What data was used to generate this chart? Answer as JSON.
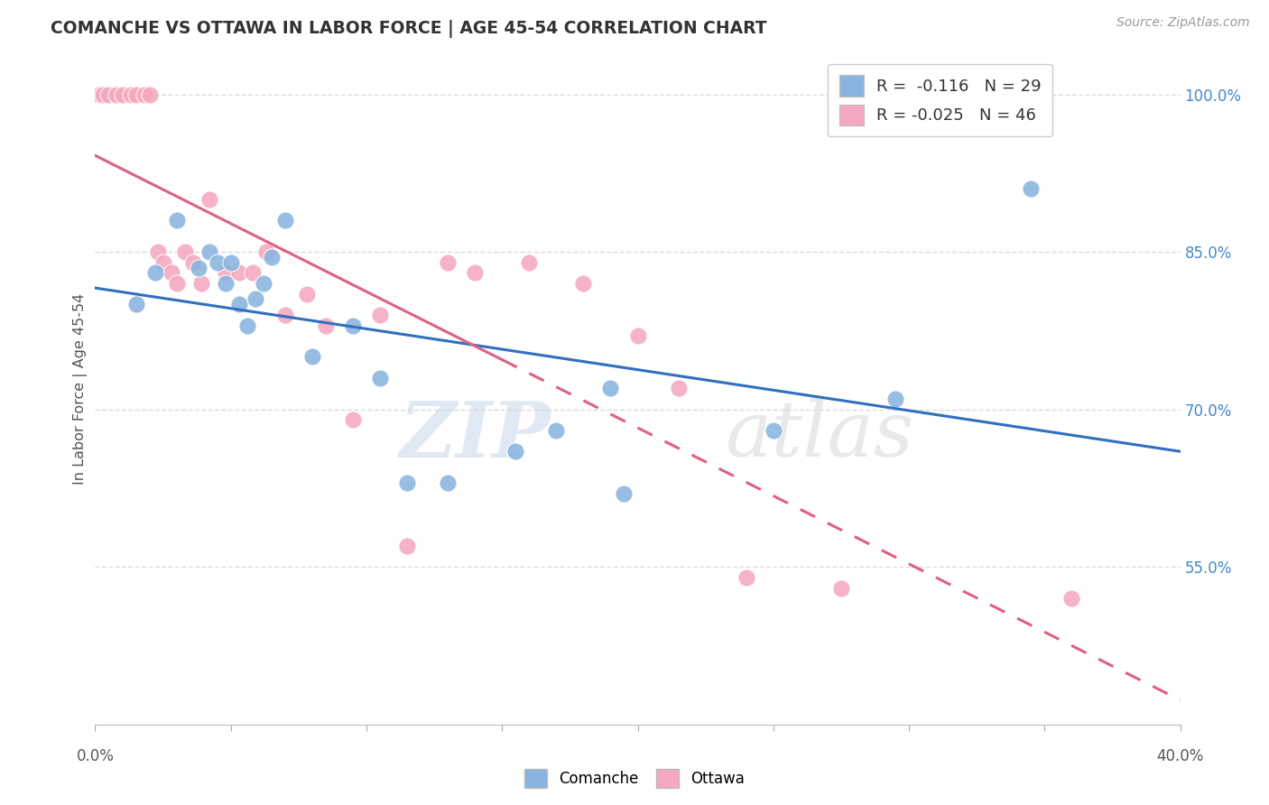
{
  "title": "COMANCHE VS OTTAWA IN LABOR FORCE | AGE 45-54 CORRELATION CHART",
  "source": "Source: ZipAtlas.com",
  "ylabel": "In Labor Force | Age 45-54",
  "xlim": [
    0.0,
    40.0
  ],
  "ylim": [
    40.0,
    104.0
  ],
  "yticks": [
    55.0,
    70.0,
    85.0,
    100.0
  ],
  "watermark": "ZIPatlas",
  "comanche_x": [
    1.5,
    2.2,
    3.0,
    3.8,
    4.2,
    4.5,
    4.8,
    5.0,
    5.3,
    5.6,
    5.9,
    6.2,
    6.5,
    7.0,
    8.0,
    9.5,
    10.5,
    11.5,
    13.0,
    15.5,
    17.0,
    19.0,
    19.5,
    25.0,
    29.5,
    34.5
  ],
  "comanche_y": [
    80.0,
    83.0,
    88.0,
    83.5,
    85.0,
    84.0,
    82.0,
    84.0,
    80.0,
    78.0,
    80.5,
    82.0,
    84.5,
    88.0,
    75.0,
    78.0,
    73.0,
    63.0,
    63.0,
    66.0,
    68.0,
    72.0,
    62.0,
    68.0,
    71.0,
    91.0
  ],
  "ottawa_x": [
    0.1,
    0.2,
    0.3,
    0.5,
    0.8,
    1.0,
    1.3,
    1.5,
    1.8,
    2.0,
    2.3,
    2.5,
    2.8,
    3.0,
    3.3,
    3.6,
    3.9,
    4.2,
    4.8,
    5.3,
    5.8,
    6.3,
    7.0,
    7.8,
    8.5,
    9.5,
    10.5,
    11.5,
    13.0,
    14.0,
    16.0,
    18.0,
    20.0,
    21.5,
    24.0,
    27.5,
    36.0
  ],
  "ottawa_y": [
    100.0,
    100.0,
    100.0,
    100.0,
    100.0,
    100.0,
    100.0,
    100.0,
    100.0,
    100.0,
    85.0,
    84.0,
    83.0,
    82.0,
    85.0,
    84.0,
    82.0,
    90.0,
    83.0,
    83.0,
    83.0,
    85.0,
    79.0,
    81.0,
    78.0,
    69.0,
    79.0,
    57.0,
    84.0,
    83.0,
    84.0,
    82.0,
    77.0,
    72.0,
    54.0,
    53.0,
    52.0
  ],
  "comanche_color": "#8ab4e0",
  "ottawa_color": "#f5a8bf",
  "comanche_line_color": "#3070c0",
  "ottawa_line_color": "#e06080",
  "background_color": "#ffffff",
  "grid_color": "#d8d8d8",
  "title_color": "#333333",
  "axis_label_color": "#555555",
  "right_axis_color": "#4488cc",
  "legend_R_comanche": "-0.116",
  "legend_N_comanche": "29",
  "legend_R_ottawa": "-0.025",
  "legend_N_ottawa": "46",
  "ottawa_solid_end_x": 15.0
}
